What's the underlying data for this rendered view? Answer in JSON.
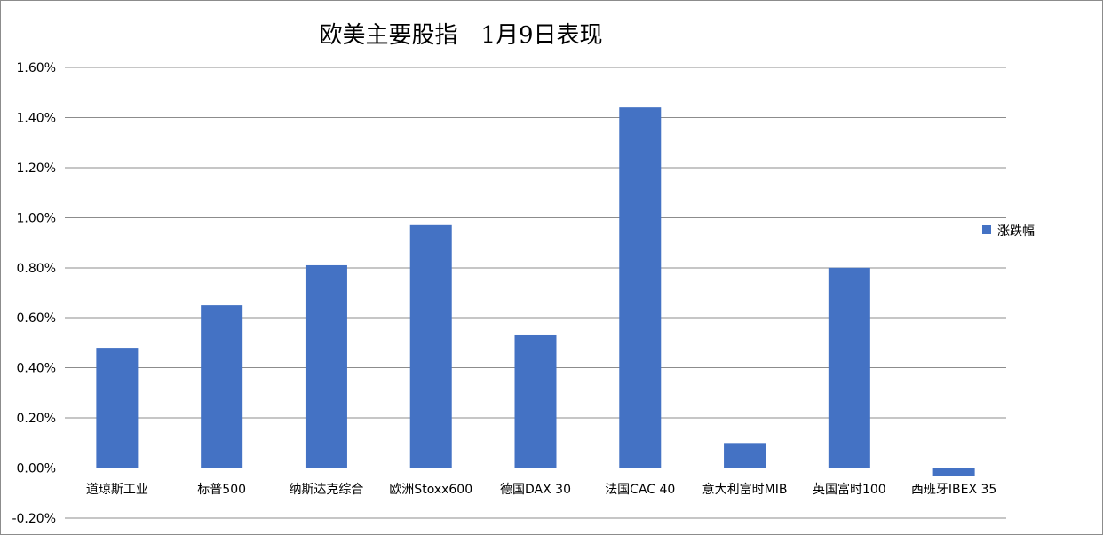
{
  "chart_data": {
    "type": "bar",
    "title": "欧美主要股指　1月9日表现",
    "categories": [
      "道琼斯工业",
      "标普500",
      "纳斯达克综合",
      "欧洲Stoxx600",
      "德国DAX 30",
      "法国CAC 40",
      "意大利富时MIB",
      "英国富时100",
      "西班牙IBEX 35"
    ],
    "series": [
      {
        "name": "涨跌幅",
        "values": [
          0.48,
          0.65,
          0.81,
          0.97,
          0.53,
          1.44,
          0.1,
          0.8,
          -0.03
        ],
        "color": "#4472c4"
      }
    ],
    "value_unit": "%",
    "ylim": [
      -0.2,
      1.6
    ],
    "yticks": [
      "-0.20%",
      "0.00%",
      "0.20%",
      "0.40%",
      "0.60%",
      "0.80%",
      "1.00%",
      "1.20%",
      "1.40%",
      "1.60%"
    ],
    "grid": true,
    "legend_position": "right"
  }
}
